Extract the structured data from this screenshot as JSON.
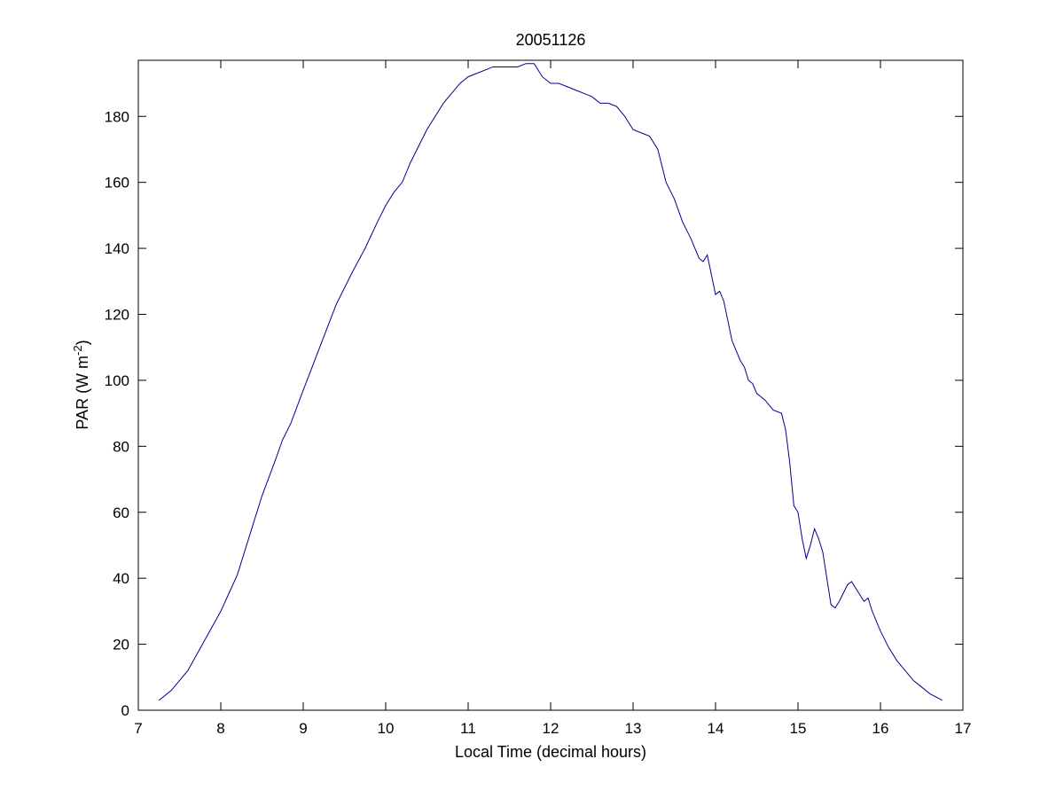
{
  "chart_data": {
    "type": "line",
    "title": "20051126",
    "xlabel": "Local Time (decimal hours)",
    "ylabel": {
      "prefix": "PAR (W m",
      "superscript": "-2",
      "suffix": ")"
    },
    "xlim": [
      7,
      17
    ],
    "ylim": [
      0,
      197
    ],
    "xticks": [
      7,
      8,
      9,
      10,
      11,
      12,
      13,
      14,
      15,
      16,
      17
    ],
    "yticks": [
      0,
      20,
      40,
      60,
      80,
      100,
      120,
      140,
      160,
      180
    ],
    "grid": false,
    "line_color": "#00008b",
    "series": [
      {
        "x": [
          7.25,
          7.4,
          7.6,
          7.8,
          8.0,
          8.2,
          8.35,
          8.5,
          8.65,
          8.75,
          8.85,
          9.0,
          9.2,
          9.4,
          9.6,
          9.75,
          9.9,
          10.0,
          10.1,
          10.2,
          10.3,
          10.4,
          10.5,
          10.6,
          10.7,
          10.8,
          10.9,
          11.0,
          11.1,
          11.2,
          11.3,
          11.4,
          11.5,
          11.6,
          11.7,
          11.8,
          11.9,
          12.0,
          12.1,
          12.2,
          12.3,
          12.4,
          12.5,
          12.6,
          12.7,
          12.8,
          12.9,
          13.0,
          13.1,
          13.2,
          13.3,
          13.4,
          13.5,
          13.6,
          13.7,
          13.8,
          13.85,
          13.9,
          13.95,
          14.0,
          14.05,
          14.1,
          14.15,
          14.2,
          14.3,
          14.35,
          14.4,
          14.45,
          14.5,
          14.55,
          14.6,
          14.7,
          14.8,
          14.85,
          14.9,
          14.95,
          15.0,
          15.05,
          15.1,
          15.15,
          15.2,
          15.25,
          15.3,
          15.35,
          15.4,
          15.45,
          15.5,
          15.6,
          15.65,
          15.7,
          15.75,
          15.8,
          15.85,
          15.9,
          16.0,
          16.1,
          16.2,
          16.3,
          16.4,
          16.5,
          16.6,
          16.75
        ],
        "y": [
          3,
          6,
          12,
          21,
          30,
          41,
          53,
          65,
          75,
          82,
          87,
          97,
          110,
          123,
          133,
          140,
          148,
          153,
          157,
          160,
          166,
          171,
          176,
          180,
          184,
          187,
          190,
          192,
          193,
          194,
          195,
          195,
          195,
          195,
          196,
          196,
          192,
          190,
          190,
          189,
          188,
          187,
          186,
          184,
          184,
          183,
          180,
          176,
          175,
          174,
          170,
          160,
          155,
          148,
          143,
          137,
          136,
          138,
          132,
          126,
          127,
          124,
          118,
          112,
          106,
          104,
          100,
          99,
          96,
          95,
          94,
          91,
          90,
          85,
          75,
          62,
          60,
          52,
          46,
          50,
          55,
          52,
          48,
          40,
          32,
          31,
          33,
          38,
          39,
          37,
          35,
          33,
          34,
          30,
          24,
          19,
          15,
          12,
          9,
          7,
          5,
          3
        ]
      }
    ]
  }
}
